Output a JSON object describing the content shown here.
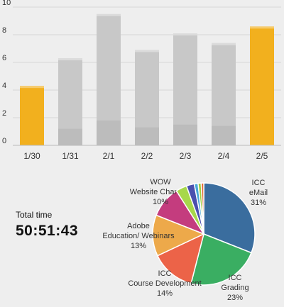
{
  "chart_data": [
    {
      "type": "bar",
      "categories": [
        "1/30",
        "1/31",
        "2/1",
        "2/2",
        "2/3",
        "2/4",
        "2/5"
      ],
      "values": [
        4.3,
        6.3,
        9.5,
        6.9,
        8.1,
        7.4,
        8.6
      ],
      "base_values": [
        0,
        1.2,
        1.8,
        1.3,
        1.5,
        1.4,
        0
      ],
      "highlighted": [
        true,
        false,
        false,
        false,
        false,
        false,
        true
      ],
      "ylim": [
        0,
        10
      ],
      "yticks": [
        0,
        2,
        4,
        6,
        8,
        10
      ],
      "grid": true,
      "colors": {
        "highlight": "#f2b01e",
        "normal": "#c8c8c8",
        "base": "#bcbcbc",
        "grid": "#d6d6d6"
      }
    },
    {
      "type": "pie",
      "slices": [
        {
          "label": [
            "ICC",
            "eMail"
          ],
          "percent": "31%",
          "value": 31,
          "color": "#3a6d9e"
        },
        {
          "label": [
            "ICC",
            "Grading"
          ],
          "percent": "23%",
          "value": 23,
          "color": "#3aae62"
        },
        {
          "label": [
            "ICC",
            "Course Development"
          ],
          "percent": "14%",
          "value": 14,
          "color": "#ec6348"
        },
        {
          "label": [
            "Adobe",
            "Education/ Webinars"
          ],
          "percent": "13%",
          "value": 13,
          "color": "#eda94a"
        },
        {
          "label": [
            "WOW",
            "Website Changes"
          ],
          "percent": "10%",
          "value": 10,
          "color": "#c43c7e"
        },
        {
          "label": [],
          "percent": "",
          "value": 3.5,
          "color": "#a7d84a"
        },
        {
          "label": [],
          "percent": "",
          "value": 2.5,
          "color": "#4a4fae"
        },
        {
          "label": [],
          "percent": "",
          "value": 1.2,
          "color": "#48a6d8"
        },
        {
          "label": [],
          "percent": "",
          "value": 1.0,
          "color": "#9ecf3e"
        },
        {
          "label": [],
          "percent": "",
          "value": 0.8,
          "color": "#e0662e"
        }
      ]
    }
  ],
  "total": {
    "label": "Total time",
    "value": "50:51:43"
  }
}
